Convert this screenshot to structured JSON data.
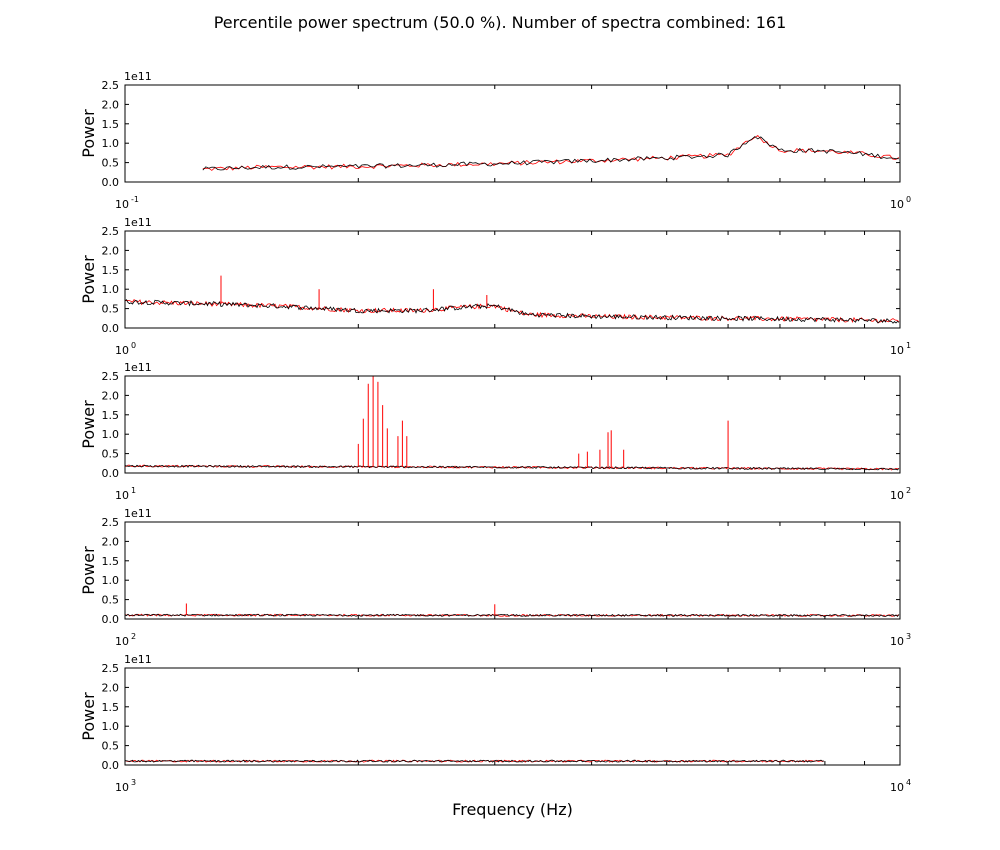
{
  "title": "Percentile power spectrum (50.0 %). Number of spectra combined: 161",
  "xlabel": "Frequency (Hz)",
  "ylabel": "Power",
  "y_multiplier": "1e11",
  "colors": {
    "signal": "#ff0000",
    "baseline": "#000000"
  },
  "chart_data": [
    {
      "type": "line",
      "xscale": "log",
      "xlim": [
        0.1,
        1
      ],
      "ylim": [
        0,
        2.5
      ],
      "x_ticks": [
        {
          "base": "10",
          "exp": "-1"
        },
        {
          "base": "10",
          "exp": "0"
        }
      ],
      "y_ticks": [
        "0.0",
        "0.5",
        "1.0",
        "1.5",
        "2.0",
        "2.5"
      ],
      "series": [
        {
          "x_range": [
            0.126,
            1.0
          ],
          "points": [
            [
              0.126,
              0.33
            ],
            [
              0.15,
              0.38
            ],
            [
              0.2,
              0.4
            ],
            [
              0.3,
              0.47
            ],
            [
              0.4,
              0.55
            ],
            [
              0.5,
              0.62
            ],
            [
              0.6,
              0.7
            ],
            [
              0.65,
              1.2
            ],
            [
              0.7,
              0.82
            ],
            [
              0.8,
              0.8
            ],
            [
              0.9,
              0.72
            ],
            [
              1.0,
              0.6
            ]
          ],
          "spikes": []
        }
      ]
    },
    {
      "type": "line",
      "xscale": "log",
      "xlim": [
        1,
        10
      ],
      "ylim": [
        0,
        2.5
      ],
      "x_ticks": [
        {
          "base": "10",
          "exp": "0"
        },
        {
          "base": "10",
          "exp": "1"
        }
      ],
      "y_ticks": [
        "0.0",
        "0.5",
        "1.0",
        "1.5",
        "2.0",
        "2.5"
      ],
      "series": [
        {
          "x_range": [
            1,
            10
          ],
          "points": [
            [
              1,
              0.68
            ],
            [
              1.3,
              0.62
            ],
            [
              1.6,
              0.56
            ],
            [
              2.0,
              0.45
            ],
            [
              2.4,
              0.45
            ],
            [
              2.8,
              0.55
            ],
            [
              3.0,
              0.57
            ],
            [
              3.3,
              0.35
            ],
            [
              4.0,
              0.3
            ],
            [
              6.0,
              0.25
            ],
            [
              8.0,
              0.22
            ],
            [
              10.0,
              0.18
            ]
          ],
          "spikes": [
            [
              1.33,
              1.35
            ],
            [
              1.78,
              1.0
            ],
            [
              2.5,
              1.0
            ],
            [
              2.93,
              0.85
            ]
          ]
        }
      ]
    },
    {
      "type": "line",
      "xscale": "log",
      "xlim": [
        10,
        100
      ],
      "ylim": [
        0,
        2.5
      ],
      "x_ticks": [
        {
          "base": "10",
          "exp": "1"
        },
        {
          "base": "10",
          "exp": "2"
        }
      ],
      "y_ticks": [
        "0.0",
        "0.5",
        "1.0",
        "1.5",
        "2.0",
        "2.5"
      ],
      "series": [
        {
          "x_range": [
            10,
            100
          ],
          "points": [
            [
              10,
              0.18
            ],
            [
              30,
              0.15
            ],
            [
              60,
              0.12
            ],
            [
              100,
              0.1
            ]
          ],
          "spikes": [
            [
              20.0,
              0.75
            ],
            [
              20.3,
              1.4
            ],
            [
              20.6,
              2.3
            ],
            [
              20.9,
              2.5
            ],
            [
              21.2,
              2.35
            ],
            [
              21.5,
              1.75
            ],
            [
              21.8,
              1.15
            ],
            [
              22.5,
              0.95
            ],
            [
              22.8,
              1.35
            ],
            [
              23.1,
              0.95
            ],
            [
              38.5,
              0.5
            ],
            [
              39.5,
              0.55
            ],
            [
              41.0,
              0.6
            ],
            [
              42.0,
              1.05
            ],
            [
              42.4,
              1.1
            ],
            [
              44.0,
              0.6
            ],
            [
              60.0,
              1.35
            ]
          ]
        }
      ]
    },
    {
      "type": "line",
      "xscale": "log",
      "xlim": [
        100,
        1000
      ],
      "ylim": [
        0,
        2.5
      ],
      "x_ticks": [
        {
          "base": "10",
          "exp": "2"
        },
        {
          "base": "10",
          "exp": "3"
        }
      ],
      "y_ticks": [
        "0.0",
        "0.5",
        "1.0",
        "1.5",
        "2.0",
        "2.5"
      ],
      "series": [
        {
          "x_range": [
            100,
            1000
          ],
          "points": [
            [
              100,
              0.1
            ],
            [
              1000,
              0.09
            ]
          ],
          "spikes": [
            [
              120,
              0.4
            ],
            [
              300,
              0.38
            ]
          ]
        }
      ]
    },
    {
      "type": "line",
      "xscale": "log",
      "xlim": [
        1000,
        10000
      ],
      "ylim": [
        0,
        2.5
      ],
      "x_ticks": [
        {
          "base": "10",
          "exp": "3"
        },
        {
          "base": "10",
          "exp": "4"
        }
      ],
      "y_ticks": [
        "0.0",
        "0.5",
        "1.0",
        "1.5",
        "2.0",
        "2.5"
      ],
      "series": [
        {
          "x_range": [
            1000,
            8000
          ],
          "points": [
            [
              1000,
              0.1
            ],
            [
              8000,
              0.1
            ]
          ],
          "spikes": []
        }
      ]
    }
  ]
}
